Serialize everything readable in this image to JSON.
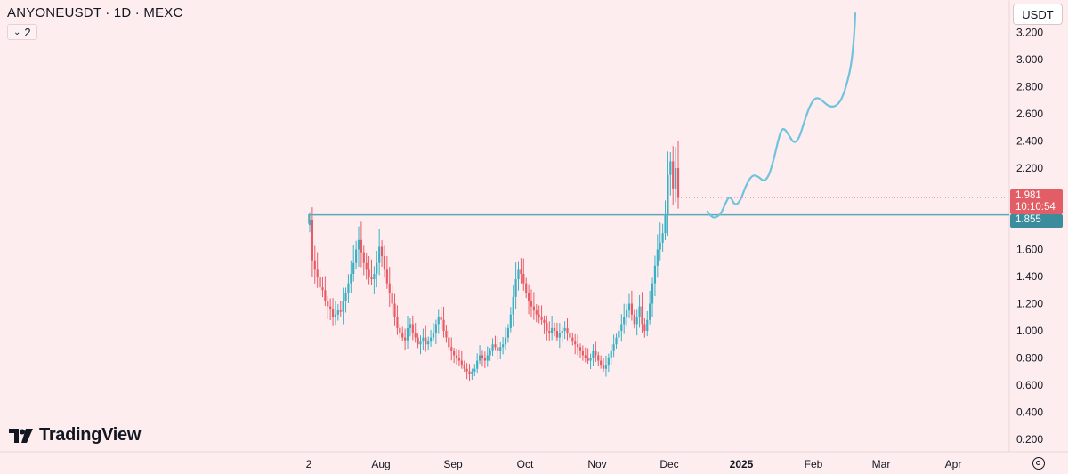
{
  "header": {
    "symbol_title": "ANYONEUSDT · 1D · MEXC",
    "indicator_count": "2",
    "indicator_icon": "chevron-down-icon"
  },
  "toolbar": {
    "currency": "USDT",
    "settings_icon": "gear-icon"
  },
  "branding": {
    "logo_text": "TradingView",
    "logo_icon": "tradingview-logo-icon"
  },
  "price_labels": {
    "current_price": "1.981",
    "countdown": "10:10:54",
    "level": "1.855"
  },
  "colors": {
    "background": "#fdedee",
    "candle_up": "#3bb0c4",
    "candle_down": "#e85b66",
    "projection": "#6fc3de",
    "level_line": "#5aa8b8",
    "current_price_bg": "#e35d67",
    "level_bg": "#3b8c9c"
  },
  "chart_data": {
    "type": "candlestick",
    "title": "ANYONEUSDT · 1D · MEXC",
    "y_axis": {
      "ticks": [
        "3.200",
        "3.000",
        "2.800",
        "2.600",
        "2.400",
        "2.200",
        "1.600",
        "1.400",
        "1.200",
        "1.000",
        "0.800",
        "0.600",
        "0.400",
        "0.200"
      ],
      "range": [
        0.12,
        3.35
      ]
    },
    "x_axis": {
      "ticks": [
        {
          "label": "2",
          "bold": false
        },
        {
          "label": "Aug",
          "bold": false
        },
        {
          "label": "Sep",
          "bold": false
        },
        {
          "label": "Oct",
          "bold": false
        },
        {
          "label": "Nov",
          "bold": false
        },
        {
          "label": "Dec",
          "bold": false
        },
        {
          "label": "2025",
          "bold": true
        },
        {
          "label": "Feb",
          "bold": false
        },
        {
          "label": "Mar",
          "bold": false
        },
        {
          "label": "Apr",
          "bold": false
        }
      ]
    },
    "candles_close": [
      1.82,
      1.52,
      1.45,
      1.4,
      1.32,
      1.3,
      1.22,
      1.18,
      1.16,
      1.1,
      1.12,
      1.15,
      1.14,
      1.22,
      1.28,
      1.35,
      1.42,
      1.5,
      1.6,
      1.67,
      1.58,
      1.5,
      1.45,
      1.4,
      1.38,
      1.42,
      1.5,
      1.62,
      1.55,
      1.45,
      1.35,
      1.28,
      1.2,
      1.1,
      1.02,
      0.98,
      0.95,
      0.93,
      1.02,
      1.05,
      0.98,
      0.95,
      0.9,
      0.92,
      0.95,
      0.9,
      0.92,
      0.95,
      0.98,
      1.05,
      1.1,
      1.08,
      1.0,
      0.95,
      0.88,
      0.85,
      0.82,
      0.8,
      0.78,
      0.75,
      0.72,
      0.7,
      0.68,
      0.7,
      0.72,
      0.78,
      0.82,
      0.8,
      0.78,
      0.82,
      0.85,
      0.9,
      0.88,
      0.85,
      0.88,
      0.9,
      0.95,
      1.02,
      1.12,
      1.25,
      1.38,
      1.45,
      1.42,
      1.35,
      1.28,
      1.22,
      1.18,
      1.15,
      1.12,
      1.1,
      1.08,
      1.06,
      1.0,
      0.98,
      1.02,
      1.0,
      0.95,
      0.98,
      1.0,
      1.02,
      0.98,
      0.95,
      0.92,
      0.9,
      0.88,
      0.85,
      0.82,
      0.8,
      0.78,
      0.8,
      0.85,
      0.82,
      0.78,
      0.75,
      0.72,
      0.75,
      0.8,
      0.85,
      0.9,
      0.95,
      1.0,
      1.05,
      1.1,
      1.15,
      1.2,
      1.12,
      1.05,
      1.1,
      1.18,
      1.05,
      1.0,
      1.08,
      1.2,
      1.35,
      1.48,
      1.6,
      1.65,
      1.72,
      1.85,
      2.15,
      2.25,
      2.05,
      2.2,
      1.98
    ],
    "resistance_level": 1.855,
    "current_price": 1.981,
    "projection_path": [
      [
        795,
        1.88
      ],
      [
        798,
        1.85
      ],
      [
        803,
        1.83
      ],
      [
        810,
        1.86
      ],
      [
        815,
        1.94
      ],
      [
        820,
        2.0
      ],
      [
        826,
        1.92
      ],
      [
        832,
        1.96
      ],
      [
        838,
        2.07
      ],
      [
        845,
        2.15
      ],
      [
        852,
        2.14
      ],
      [
        858,
        2.1
      ],
      [
        864,
        2.14
      ],
      [
        870,
        2.28
      ],
      [
        876,
        2.45
      ],
      [
        880,
        2.5
      ],
      [
        886,
        2.45
      ],
      [
        892,
        2.38
      ],
      [
        898,
        2.42
      ],
      [
        904,
        2.55
      ],
      [
        910,
        2.66
      ],
      [
        916,
        2.72
      ],
      [
        922,
        2.71
      ],
      [
        928,
        2.67
      ],
      [
        934,
        2.65
      ],
      [
        940,
        2.66
      ],
      [
        946,
        2.71
      ],
      [
        952,
        2.83
      ],
      [
        957,
        2.98
      ],
      [
        960,
        3.2
      ],
      [
        961,
        3.34
      ]
    ]
  }
}
